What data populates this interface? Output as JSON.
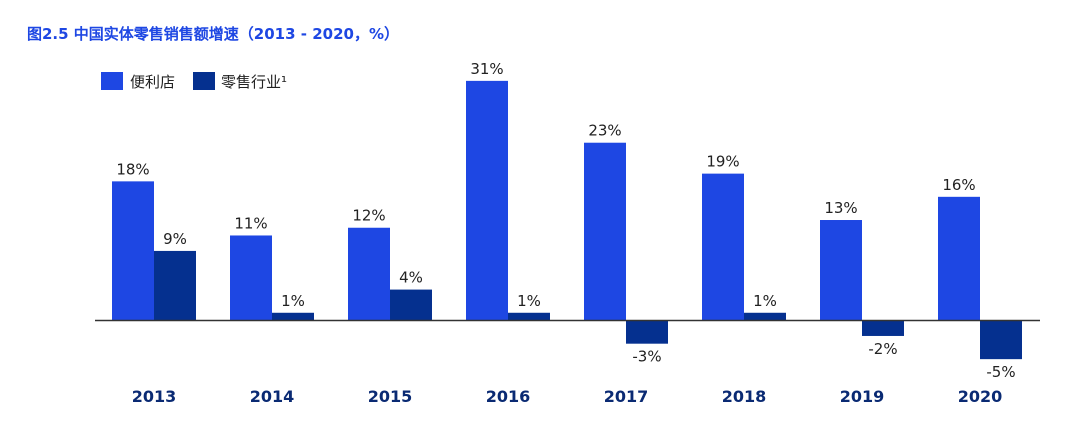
{
  "chart_data": {
    "type": "bar",
    "title": "图2.5 中国实体零售销售额增速（2013 - 2020，%）",
    "categories": [
      "2013",
      "2014",
      "2015",
      "2016",
      "2017",
      "2018",
      "2019",
      "2020"
    ],
    "series": [
      {
        "name": "便利店",
        "values": [
          18,
          11,
          12,
          31,
          23,
          19,
          13,
          16
        ],
        "labels": [
          "18%",
          "11%",
          "12%",
          "31%",
          "23%",
          "19%",
          "13%",
          "16%"
        ]
      },
      {
        "name": "零售行业¹",
        "values": [
          9,
          1,
          4,
          1,
          -3,
          1,
          -2,
          -5
        ],
        "labels": [
          "9%",
          "1%",
          "4%",
          "1%",
          "-3%",
          "1%",
          "-2%",
          "-5%"
        ]
      }
    ],
    "legend_position": "top-left",
    "grid": false,
    "colors": {
      "series_1": "#1e47e3",
      "series_2": "#05308f",
      "title": "#1e47e3",
      "category_labels": "#0a2a73",
      "axis": "#333333"
    }
  }
}
